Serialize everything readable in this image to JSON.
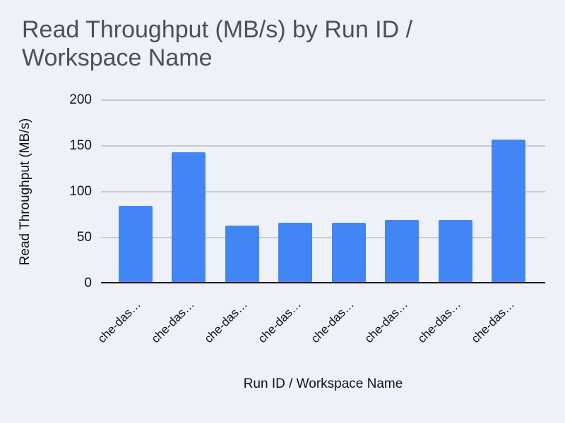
{
  "page": {
    "background": "#eef1f7"
  },
  "chart_data": {
    "type": "bar",
    "title": "Read Throughput (MB/s) by Run ID / Workspace Name",
    "xlabel": "Run ID / Workspace Name",
    "ylabel": "Read Throughput (MB/s)",
    "categories": [
      "che-das…",
      "che-das…",
      "che-das…",
      "che-das…",
      "che-das…",
      "che-das…",
      "che-das…",
      "che-das…"
    ],
    "values": [
      85,
      143,
      63,
      66,
      66,
      69,
      69,
      157
    ],
    "ylim": [
      0,
      200
    ],
    "yticks": [
      0,
      50,
      100,
      150,
      200
    ],
    "grid": true,
    "legend_position": "none",
    "category_label_angle": -45,
    "bar_color": "#4285f4"
  },
  "colors": {
    "background": "#eef1f7",
    "bar": "#4285f4",
    "title_text": "#4d5156",
    "axis_text": "#111111",
    "gridline": "#c8ccd2",
    "axis_line": "#1a1a1a"
  }
}
